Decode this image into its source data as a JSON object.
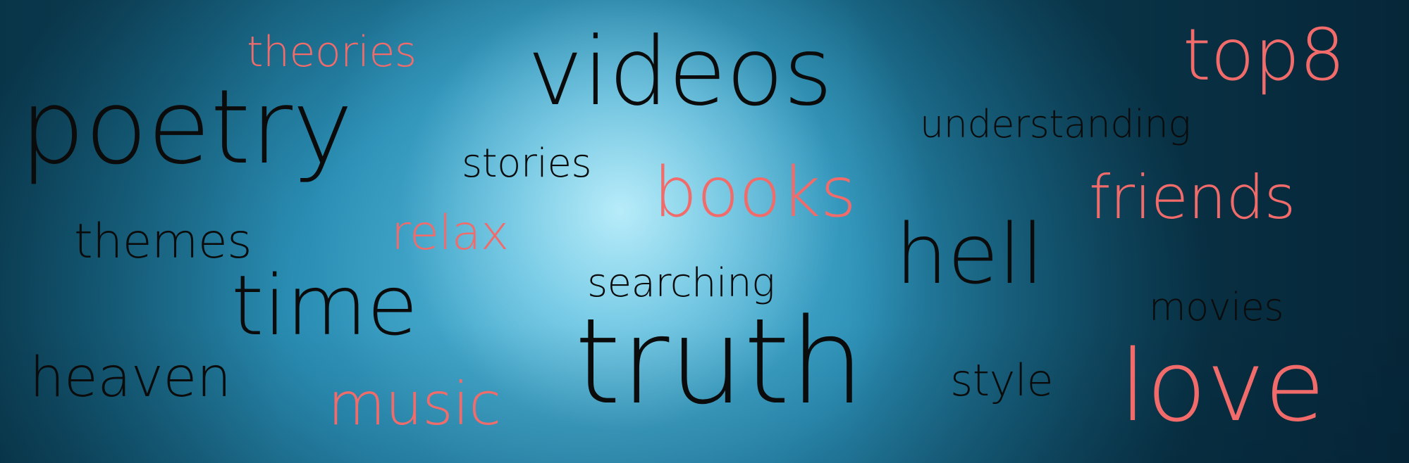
{
  "words": {
    "theories": "theories",
    "videos": "videos",
    "top8": "top8",
    "poetry": "poetry",
    "understanding": "understanding",
    "stories": "stories",
    "books": "books",
    "friends": "friends",
    "themes": "themes",
    "relax": "relax",
    "hell": "hell",
    "searching": "searching",
    "time": "time",
    "movies": "movies",
    "truth": "truth",
    "heaven": "heaven",
    "style": "style",
    "love": "love",
    "music": "music"
  },
  "colors": {
    "dark_text": "#0b0b0b",
    "coral_text": "#f26b6b",
    "background_light": "#bef0fc",
    "background_dark": "#0a3347"
  }
}
